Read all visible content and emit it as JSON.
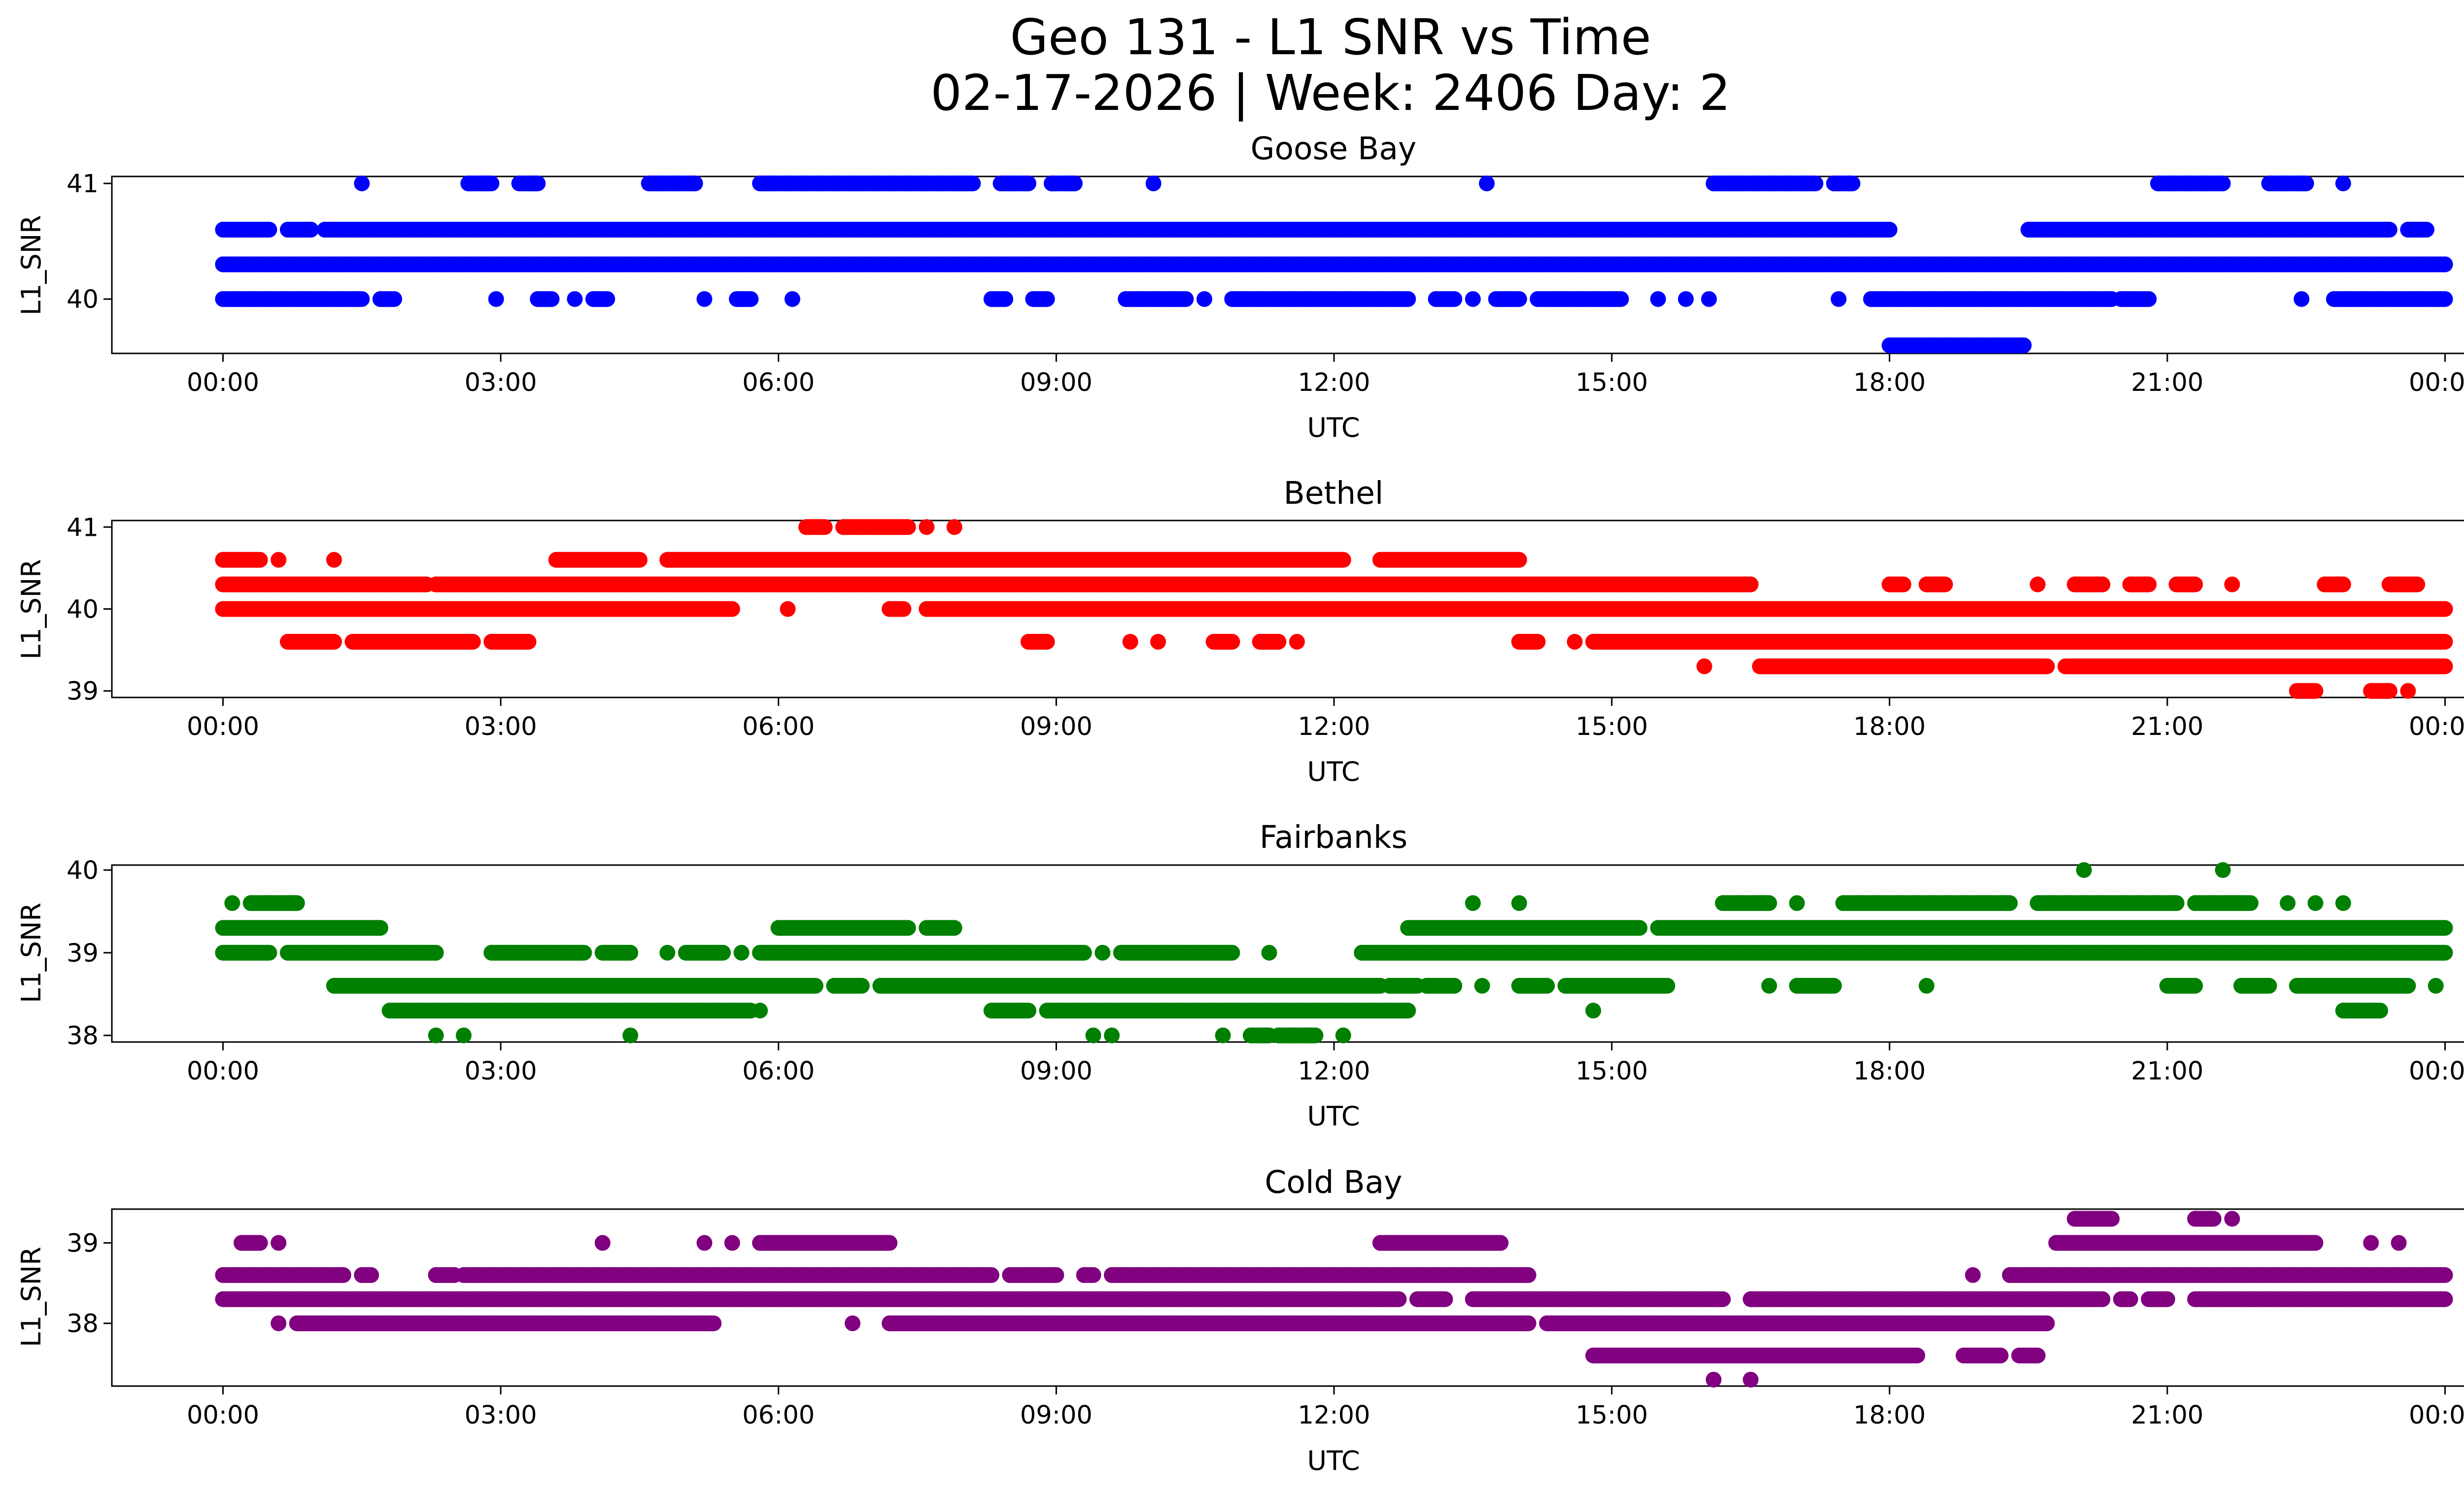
{
  "figure": {
    "title_line1": "Geo 131 - L1 SNR vs Time",
    "title_line2": "02-17-2026 | Week: 2406 Day: 2"
  },
  "chart_data": [
    {
      "type": "scatter",
      "title": "Goose Bay",
      "xlabel": "UTC",
      "ylabel": "L1_SNR",
      "color": "#0000ff",
      "x_ticks": [
        "00:00",
        "03:00",
        "06:00",
        "09:00",
        "12:00",
        "15:00",
        "18:00",
        "21:00",
        "00:00"
      ],
      "y_ticks": [
        40,
        41
      ],
      "x_range_hours": [
        -1.2,
        25.2
      ],
      "ylim": [
        39.53,
        41.06
      ],
      "levels": [
        {
          "y": 41.0,
          "segments": [
            [
              1.5,
              1.5
            ],
            [
              2.65,
              2.9
            ],
            [
              3.2,
              3.4
            ],
            [
              4.6,
              5.1
            ],
            [
              5.8,
              8.1
            ],
            [
              8.4,
              8.7
            ],
            [
              8.95,
              9.2
            ],
            [
              10.05,
              10.05
            ],
            [
              13.65,
              13.65
            ],
            [
              16.1,
              17.2
            ],
            [
              17.4,
              17.6
            ],
            [
              20.9,
              21.6
            ],
            [
              22.1,
              22.5
            ],
            [
              22.9,
              22.9
            ]
          ]
        },
        {
          "y": 40.6,
          "segments": [
            [
              0.0,
              0.5
            ],
            [
              0.7,
              0.95
            ],
            [
              1.1,
              18.0
            ],
            [
              19.5,
              23.4
            ],
            [
              23.6,
              23.8
            ]
          ]
        },
        {
          "y": 40.3,
          "segments": [
            [
              0.0,
              24.0
            ]
          ]
        },
        {
          "y": 40.0,
          "segments": [
            [
              0.0,
              1.5
            ],
            [
              1.7,
              1.85
            ],
            [
              2.95,
              2.95
            ],
            [
              3.4,
              3.55
            ],
            [
              3.8,
              3.8
            ],
            [
              4.0,
              4.15
            ],
            [
              5.2,
              5.2
            ],
            [
              5.55,
              5.7
            ],
            [
              6.15,
              6.15
            ],
            [
              8.3,
              8.45
            ],
            [
              8.75,
              8.9
            ],
            [
              9.75,
              10.4
            ],
            [
              10.6,
              10.6
            ],
            [
              10.9,
              12.8
            ],
            [
              13.1,
              13.3
            ],
            [
              13.5,
              13.5
            ],
            [
              13.75,
              14.0
            ],
            [
              14.2,
              15.1
            ],
            [
              15.5,
              15.5
            ],
            [
              15.8,
              15.8
            ],
            [
              16.05,
              16.05
            ],
            [
              17.45,
              17.45
            ],
            [
              17.8,
              20.4
            ],
            [
              20.5,
              20.8
            ],
            [
              22.45,
              22.45
            ],
            [
              22.8,
              24.0
            ]
          ]
        },
        {
          "y": 39.6,
          "segments": [
            [
              18.0,
              19.45
            ]
          ]
        }
      ]
    },
    {
      "type": "scatter",
      "title": "Bethel",
      "xlabel": "UTC",
      "ylabel": "L1_SNR",
      "color": "#ff0000",
      "x_ticks": [
        "00:00",
        "03:00",
        "06:00",
        "09:00",
        "12:00",
        "15:00",
        "18:00",
        "21:00",
        "00:00"
      ],
      "y_ticks": [
        39,
        40,
        41
      ],
      "x_range_hours": [
        -1.2,
        25.2
      ],
      "ylim": [
        38.92,
        41.08
      ],
      "levels": [
        {
          "y": 41.0,
          "segments": [
            [
              6.3,
              6.5
            ],
            [
              6.7,
              7.4
            ],
            [
              7.6,
              7.6
            ],
            [
              7.9,
              7.9
            ]
          ]
        },
        {
          "y": 40.6,
          "segments": [
            [
              0.0,
              0.4
            ],
            [
              0.6,
              0.6
            ],
            [
              1.2,
              1.2
            ],
            [
              3.6,
              4.5
            ],
            [
              4.8,
              12.1
            ],
            [
              12.5,
              14.0
            ]
          ]
        },
        {
          "y": 40.3,
          "segments": [
            [
              0.0,
              2.2
            ],
            [
              2.3,
              16.5
            ],
            [
              18.0,
              18.15
            ],
            [
              18.4,
              18.6
            ],
            [
              19.6,
              19.6
            ],
            [
              20.0,
              20.3
            ],
            [
              20.6,
              20.8
            ],
            [
              21.1,
              21.3
            ],
            [
              21.7,
              21.7
            ],
            [
              22.7,
              22.9
            ],
            [
              23.4,
              23.7
            ]
          ]
        },
        {
          "y": 40.0,
          "segments": [
            [
              0.0,
              5.5
            ],
            [
              6.1,
              6.1
            ],
            [
              7.2,
              7.35
            ],
            [
              7.6,
              24.0
            ]
          ]
        },
        {
          "y": 39.6,
          "segments": [
            [
              0.7,
              1.2
            ],
            [
              1.4,
              2.7
            ],
            [
              2.9,
              3.3
            ],
            [
              8.7,
              8.9
            ],
            [
              9.8,
              9.8
            ],
            [
              10.1,
              10.1
            ],
            [
              10.7,
              10.9
            ],
            [
              11.2,
              11.4
            ],
            [
              11.6,
              11.6
            ],
            [
              14.0,
              14.2
            ],
            [
              14.6,
              14.6
            ],
            [
              14.8,
              24.0
            ]
          ]
        },
        {
          "y": 39.3,
          "segments": [
            [
              16.0,
              16.0
            ],
            [
              16.6,
              19.7
            ],
            [
              19.9,
              24.0
            ]
          ]
        },
        {
          "y": 39.0,
          "segments": [
            [
              22.4,
              22.6
            ],
            [
              23.2,
              23.4
            ],
            [
              23.6,
              23.6
            ]
          ]
        }
      ]
    },
    {
      "type": "scatter",
      "title": "Fairbanks",
      "xlabel": "UTC",
      "ylabel": "L1_SNR",
      "color": "#008000",
      "x_ticks": [
        "00:00",
        "03:00",
        "06:00",
        "09:00",
        "12:00",
        "15:00",
        "18:00",
        "21:00",
        "00:00"
      ],
      "y_ticks": [
        38,
        39,
        40
      ],
      "x_range_hours": [
        -1.2,
        25.2
      ],
      "ylim": [
        37.92,
        40.06
      ],
      "levels": [
        {
          "y": 40.0,
          "segments": [
            [
              20.1,
              20.1
            ],
            [
              21.6,
              21.6
            ]
          ]
        },
        {
          "y": 39.6,
          "segments": [
            [
              0.1,
              0.1
            ],
            [
              0.3,
              0.8
            ],
            [
              13.5,
              13.5
            ],
            [
              14.0,
              14.0
            ],
            [
              16.2,
              16.7
            ],
            [
              17.0,
              17.0
            ],
            [
              17.5,
              19.3
            ],
            [
              19.6,
              21.1
            ],
            [
              21.3,
              21.9
            ],
            [
              22.3,
              22.3
            ],
            [
              22.6,
              22.6
            ],
            [
              22.9,
              22.9
            ]
          ]
        },
        {
          "y": 39.3,
          "segments": [
            [
              0.0,
              1.7
            ],
            [
              6.0,
              7.4
            ],
            [
              7.6,
              7.9
            ],
            [
              12.8,
              15.3
            ],
            [
              15.5,
              24.0
            ]
          ]
        },
        {
          "y": 39.0,
          "segments": [
            [
              0.0,
              0.5
            ],
            [
              0.7,
              2.3
            ],
            [
              2.9,
              3.9
            ],
            [
              4.1,
              4.4
            ],
            [
              4.8,
              4.8
            ],
            [
              5.0,
              5.4
            ],
            [
              5.6,
              5.6
            ],
            [
              5.8,
              9.3
            ],
            [
              9.5,
              9.5
            ],
            [
              9.7,
              10.9
            ],
            [
              11.3,
              11.3
            ],
            [
              12.3,
              24.0
            ]
          ]
        },
        {
          "y": 38.6,
          "segments": [
            [
              1.2,
              6.4
            ],
            [
              6.6,
              6.9
            ],
            [
              7.1,
              12.5
            ],
            [
              12.6,
              12.9
            ],
            [
              13.0,
              13.3
            ],
            [
              13.6,
              13.6
            ],
            [
              14.0,
              14.3
            ],
            [
              14.5,
              15.6
            ],
            [
              16.7,
              16.7
            ],
            [
              17.0,
              17.4
            ],
            [
              18.4,
              18.4
            ],
            [
              21.0,
              21.3
            ],
            [
              21.8,
              22.1
            ],
            [
              22.4,
              23.6
            ],
            [
              23.9,
              23.9
            ]
          ]
        },
        {
          "y": 38.3,
          "segments": [
            [
              1.8,
              5.7
            ],
            [
              5.8,
              5.8
            ],
            [
              8.3,
              8.7
            ],
            [
              8.9,
              12.8
            ],
            [
              14.8,
              14.8
            ],
            [
              22.9,
              23.3
            ]
          ]
        },
        {
          "y": 38.0,
          "segments": [
            [
              2.3,
              2.3
            ],
            [
              2.6,
              2.6
            ],
            [
              4.4,
              4.4
            ],
            [
              9.4,
              9.4
            ],
            [
              9.6,
              9.6
            ],
            [
              10.8,
              10.8
            ],
            [
              11.1,
              11.3
            ],
            [
              11.4,
              11.8
            ],
            [
              12.1,
              12.1
            ]
          ]
        }
      ]
    },
    {
      "type": "scatter",
      "title": "Cold Bay",
      "xlabel": "UTC",
      "ylabel": "L1_SNR",
      "color": "#800080",
      "x_ticks": [
        "00:00",
        "03:00",
        "06:00",
        "09:00",
        "12:00",
        "15:00",
        "18:00",
        "21:00",
        "00:00"
      ],
      "y_ticks": [
        38,
        39
      ],
      "x_range_hours": [
        -1.2,
        25.2
      ],
      "ylim": [
        37.22,
        39.42
      ],
      "levels": [
        {
          "y": 39.3,
          "segments": [
            [
              20.0,
              20.4
            ],
            [
              21.3,
              21.5
            ],
            [
              21.7,
              21.7
            ]
          ]
        },
        {
          "y": 39.0,
          "segments": [
            [
              0.2,
              0.4
            ],
            [
              0.6,
              0.6
            ],
            [
              4.1,
              4.1
            ],
            [
              5.2,
              5.2
            ],
            [
              5.5,
              5.5
            ],
            [
              5.8,
              7.2
            ],
            [
              12.5,
              13.8
            ],
            [
              19.8,
              22.6
            ],
            [
              23.2,
              23.2
            ],
            [
              23.5,
              23.5
            ]
          ]
        },
        {
          "y": 38.6,
          "segments": [
            [
              0.0,
              1.3
            ],
            [
              1.5,
              1.6
            ],
            [
              2.3,
              2.5
            ],
            [
              2.6,
              8.3
            ],
            [
              8.5,
              9.0
            ],
            [
              9.3,
              9.4
            ],
            [
              9.6,
              14.1
            ],
            [
              18.9,
              18.9
            ],
            [
              19.3,
              24.0
            ]
          ]
        },
        {
          "y": 38.3,
          "segments": [
            [
              0.0,
              12.7
            ],
            [
              12.9,
              13.2
            ],
            [
              13.5,
              16.2
            ],
            [
              16.5,
              20.3
            ],
            [
              20.5,
              20.6
            ],
            [
              20.8,
              21.0
            ],
            [
              21.3,
              24.0
            ]
          ]
        },
        {
          "y": 38.0,
          "segments": [
            [
              0.6,
              0.6
            ],
            [
              0.8,
              5.3
            ],
            [
              6.8,
              6.8
            ],
            [
              7.2,
              14.1
            ],
            [
              14.3,
              19.7
            ]
          ]
        },
        {
          "y": 37.6,
          "segments": [
            [
              14.8,
              18.3
            ],
            [
              18.8,
              19.2
            ],
            [
              19.4,
              19.6
            ]
          ]
        },
        {
          "y": 37.3,
          "segments": [
            [
              16.1,
              16.1
            ],
            [
              16.5,
              16.5
            ]
          ]
        }
      ]
    }
  ]
}
